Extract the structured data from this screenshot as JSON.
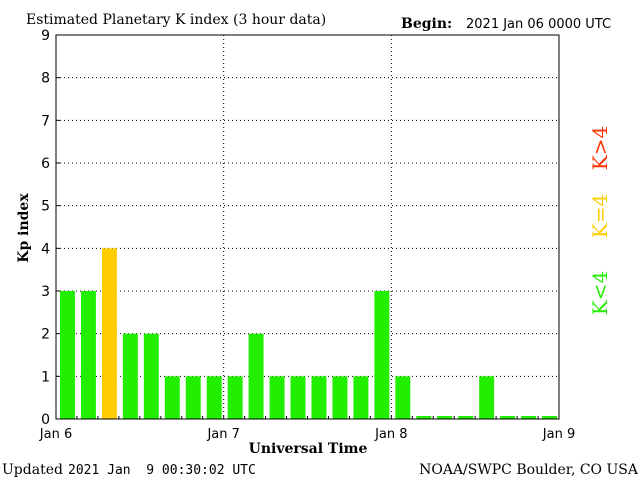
{
  "header": {
    "title": "Estimated Planetary K index (3 hour data)",
    "begin_label": "Begin:",
    "begin_value": "2021 Jan 06 0000 UTC"
  },
  "footer": {
    "updated_label": "Updated",
    "updated_value": "2021 Jan  9 00:30:02 UTC",
    "source": "NOAA/SWPC Boulder, CO USA"
  },
  "legend": {
    "low_label": "K<4",
    "mid_label": "K=4",
    "high_label": "K>4",
    "low_color": "#22ee00",
    "mid_color": "#ffcc00",
    "high_color": "#ff3300"
  },
  "chart_data": {
    "type": "bar",
    "xlabel": "Universal Time",
    "ylabel": "Kp index",
    "ylim": [
      0,
      9
    ],
    "yticks": [
      "0",
      "1",
      "2",
      "3",
      "4",
      "5",
      "6",
      "7",
      "8",
      "9"
    ],
    "xticks": [
      "Jan 6",
      "Jan 7",
      "Jan 8",
      "Jan 9"
    ],
    "grid": "dotted",
    "bar_interval": "3 hours",
    "values": [
      3,
      3,
      4,
      2,
      2,
      1,
      1,
      1,
      1,
      2,
      1,
      1,
      1,
      1,
      1,
      3,
      1,
      0.05,
      0.05,
      0.05,
      1,
      0.05,
      0.05,
      0.05
    ]
  }
}
